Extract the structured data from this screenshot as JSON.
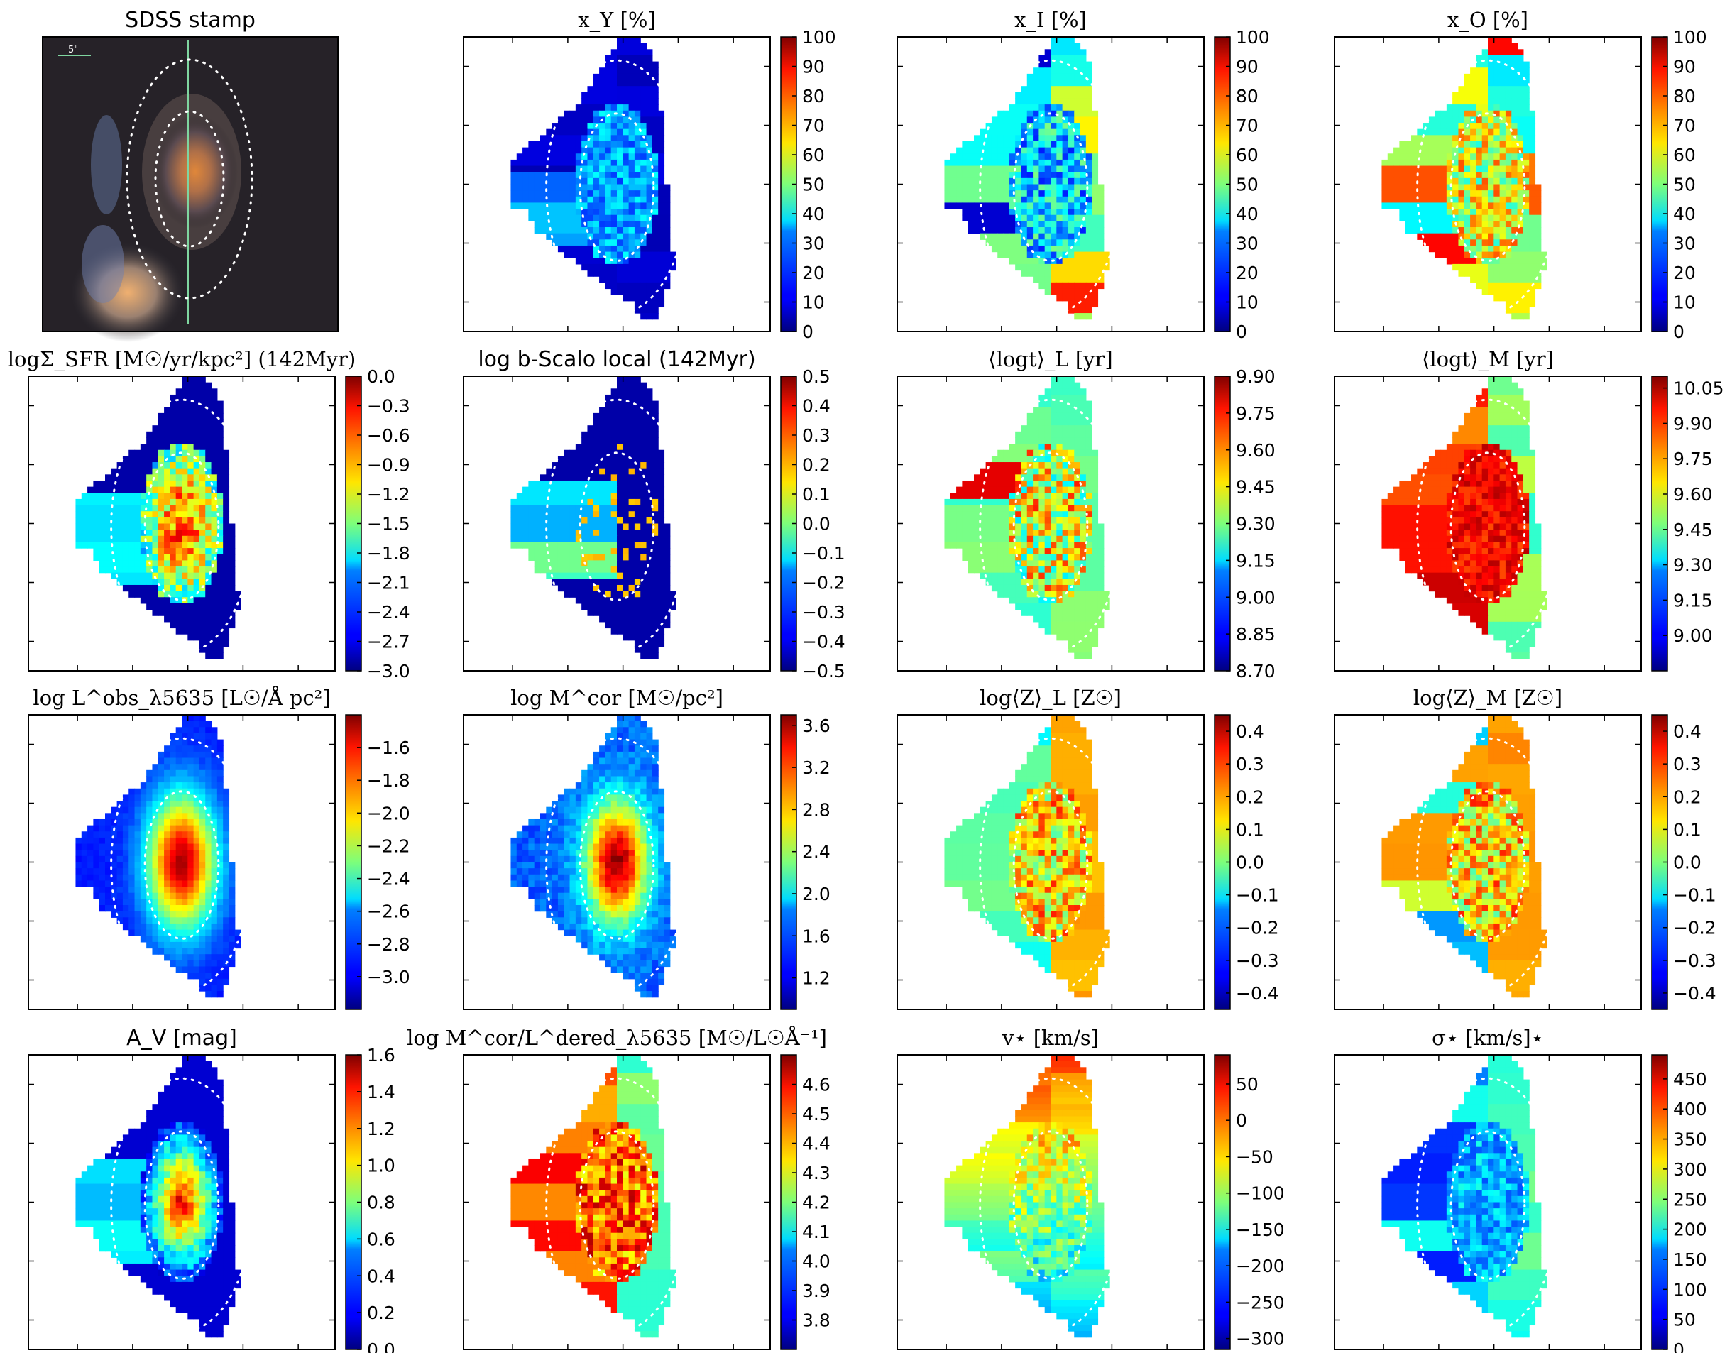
{
  "chart_data": [
    {
      "type": "image",
      "title": "SDSS stamp",
      "scale_label": "5\""
    },
    {
      "type": "heatmap",
      "title": "x_Y [%]",
      "colorbar": {
        "ticks": [
          "100",
          "90",
          "80",
          "70",
          "60",
          "50",
          "40",
          "30",
          "20",
          "10",
          "0"
        ],
        "range": [
          0,
          100
        ]
      }
    },
    {
      "type": "heatmap",
      "title": "x_I [%]",
      "colorbar": {
        "ticks": [
          "100",
          "90",
          "80",
          "70",
          "60",
          "50",
          "40",
          "30",
          "20",
          "10",
          "0"
        ],
        "range": [
          0,
          100
        ]
      }
    },
    {
      "type": "heatmap",
      "title": "x_O [%]",
      "colorbar": {
        "ticks": [
          "100",
          "90",
          "80",
          "70",
          "60",
          "50",
          "40",
          "30",
          "20",
          "10",
          "0"
        ],
        "range": [
          0,
          100
        ]
      }
    },
    {
      "type": "heatmap",
      "title": "logΣ_SFR [M☉/yr/kpc²] (142Myr)",
      "colorbar": {
        "ticks": [
          "0.0",
          "−0.3",
          "−0.6",
          "−0.9",
          "−1.2",
          "−1.5",
          "−1.8",
          "−2.1",
          "−2.4",
          "−2.7",
          "−3.0"
        ],
        "range": [
          -3.0,
          0.0
        ]
      }
    },
    {
      "type": "heatmap",
      "title": "log b-Scalo local (142Myr)",
      "colorbar": {
        "ticks": [
          "0.5",
          "0.4",
          "0.3",
          "0.2",
          "0.1",
          "0.0",
          "−0.1",
          "−0.2",
          "−0.3",
          "−0.4",
          "−0.5"
        ],
        "range": [
          -0.5,
          0.5
        ]
      }
    },
    {
      "type": "heatmap",
      "title": "⟨logt⟩_L [yr]",
      "colorbar": {
        "ticks": [
          "9.90",
          "9.75",
          "9.60",
          "9.45",
          "9.30",
          "9.15",
          "9.00",
          "8.85",
          "8.70"
        ],
        "range": [
          8.7,
          9.9
        ]
      }
    },
    {
      "type": "heatmap",
      "title": "⟨logt⟩_M [yr]",
      "colorbar": {
        "ticks": [
          "10.05",
          "9.90",
          "9.75",
          "9.60",
          "9.45",
          "9.30",
          "9.15",
          "9.00"
        ],
        "range": [
          8.85,
          10.1
        ]
      }
    },
    {
      "type": "heatmap",
      "title": "log L^obs_λ5635 [L☉/Å pc²]",
      "colorbar": {
        "ticks": [
          "−1.6",
          "−1.8",
          "−2.0",
          "−2.2",
          "−2.4",
          "−2.6",
          "−2.8",
          "−3.0"
        ],
        "range": [
          -3.2,
          -1.4
        ]
      }
    },
    {
      "type": "heatmap",
      "title": "log M^cor [M☉/pc²]",
      "colorbar": {
        "ticks": [
          "3.6",
          "3.2",
          "2.8",
          "2.4",
          "2.0",
          "1.6",
          "1.2"
        ],
        "range": [
          0.9,
          3.7
        ]
      }
    },
    {
      "type": "heatmap",
      "title": "log⟨Z⟩_L [Z☉]",
      "colorbar": {
        "ticks": [
          "0.4",
          "0.3",
          "0.2",
          "0.1",
          "0.0",
          "−0.1",
          "−0.2",
          "−0.3",
          "−0.4"
        ],
        "range": [
          -0.45,
          0.45
        ]
      }
    },
    {
      "type": "heatmap",
      "title": "log⟨Z⟩_M [Z☉]",
      "colorbar": {
        "ticks": [
          "0.4",
          "0.3",
          "0.2",
          "0.1",
          "0.0",
          "−0.1",
          "−0.2",
          "−0.3",
          "−0.4"
        ],
        "range": [
          -0.45,
          0.45
        ]
      }
    },
    {
      "type": "heatmap",
      "title": "A_V [mag]",
      "colorbar": {
        "ticks": [
          "1.6",
          "1.4",
          "1.2",
          "1.0",
          "0.8",
          "0.6",
          "0.4",
          "0.2",
          "0.0"
        ],
        "range": [
          0.0,
          1.6
        ]
      }
    },
    {
      "type": "heatmap",
      "title": "log M^cor/L^dered_λ5635 [M☉/L☉Å⁻¹]",
      "colorbar": {
        "ticks": [
          "4.6",
          "4.5",
          "4.4",
          "4.3",
          "4.2",
          "4.1",
          "4.0",
          "3.9",
          "3.8"
        ],
        "range": [
          3.7,
          4.7
        ]
      }
    },
    {
      "type": "heatmap",
      "title": "v⋆ [km/s]",
      "colorbar": {
        "ticks": [
          "50",
          "0",
          "−50",
          "−100",
          "−150",
          "−200",
          "−250",
          "−300"
        ],
        "range": [
          -315,
          90
        ]
      }
    },
    {
      "type": "heatmap",
      "title": "σ⋆ [km/s]⋆",
      "colorbar": {
        "ticks": [
          "450",
          "400",
          "350",
          "300",
          "250",
          "200",
          "150",
          "100",
          "50",
          "0"
        ],
        "range": [
          0,
          490
        ]
      }
    }
  ]
}
